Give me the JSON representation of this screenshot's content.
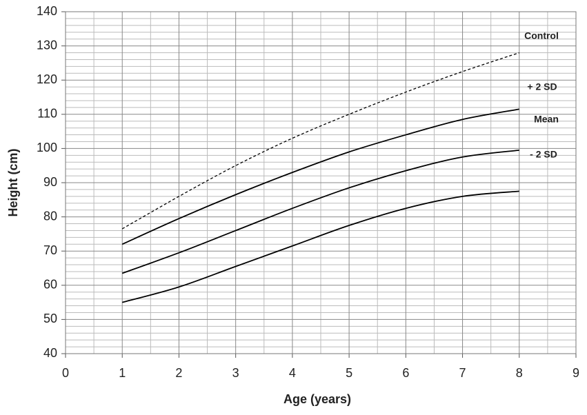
{
  "chart_data": {
    "type": "line",
    "x_label": "Age (years)",
    "y_label": "Height (cm)",
    "x": [
      1,
      2,
      3,
      4,
      5,
      6,
      7,
      8
    ],
    "series": [
      {
        "name": "Control",
        "color": "#000000",
        "dashed": true,
        "values": [
          76.5,
          86,
          95,
          103,
          110,
          116.5,
          122.5,
          128
        ]
      },
      {
        "name": "+ 2 SD",
        "color": "#000000",
        "dashed": false,
        "values": [
          72,
          79.5,
          86.5,
          93,
          99,
          104,
          108.5,
          111.5
        ]
      },
      {
        "name": "Mean",
        "color": "#000000",
        "dashed": false,
        "values": [
          63.5,
          69.5,
          76,
          82.5,
          88.5,
          93.5,
          97.5,
          99.5
        ]
      },
      {
        "name": "- 2 SD",
        "color": "#000000",
        "dashed": false,
        "values": [
          55,
          59.5,
          65.5,
          71.5,
          77.5,
          82.5,
          86,
          87.5
        ]
      }
    ],
    "xlim": [
      0,
      9
    ],
    "xticks": [
      0,
      1,
      2,
      3,
      4,
      5,
      6,
      7,
      8,
      9
    ],
    "ylim": [
      40,
      140
    ],
    "yticks": [
      40,
      50,
      60,
      70,
      80,
      90,
      100,
      110,
      120,
      130,
      140
    ],
    "grid": true
  }
}
